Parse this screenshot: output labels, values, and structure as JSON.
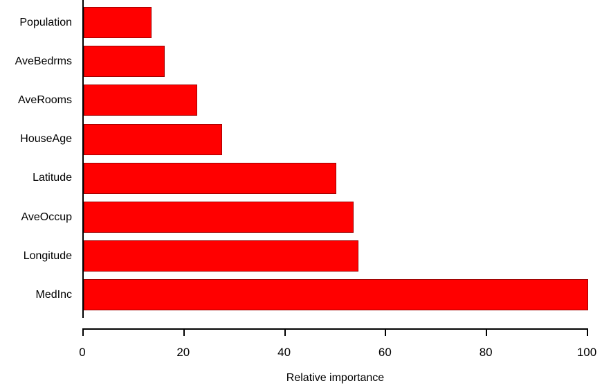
{
  "chart_data": {
    "type": "bar",
    "orientation": "horizontal",
    "title": "",
    "xlabel": "Relative importance",
    "ylabel": "",
    "categories": [
      "Population",
      "AveBedrms",
      "AveRooms",
      "HouseAge",
      "Latitude",
      "AveOccup",
      "Longitude",
      "MedInc"
    ],
    "values": [
      13.5,
      16,
      22.5,
      27.5,
      50,
      53.5,
      54.5,
      100
    ],
    "xlim": [
      0,
      100
    ],
    "xticks": [
      0,
      20,
      40,
      60,
      80,
      100
    ],
    "grid": false,
    "legend": null,
    "bar_color": "#ff0000",
    "bar_border_color": "#a00000",
    "axis_color": "#000000"
  }
}
